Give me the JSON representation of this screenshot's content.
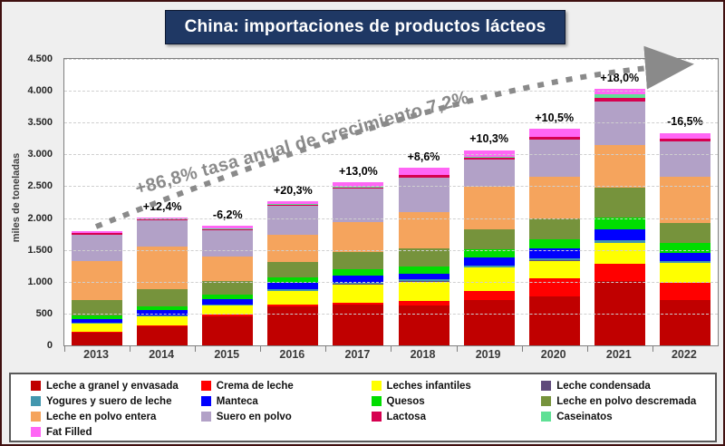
{
  "title": "China: importaciones de productos lácteos",
  "annotation_text": "+86,8% tasa anual de crecimiento 7,2%",
  "y_axis": {
    "label": "miles de toneladas",
    "tick_labels": [
      "0",
      "500",
      "1.000",
      "1.500",
      "2.000",
      "2.500",
      "3.000",
      "3.500",
      "4.000",
      "4.500"
    ]
  },
  "theme": {
    "title_bg": "#1F3864",
    "title_text": "#FFFFFF",
    "frame_border": "#401010",
    "background": "#EFEFEF",
    "arrow_color": "#8a8a8a"
  },
  "chart_data": {
    "type": "bar",
    "stacked": true,
    "title": "China: importaciones de productos lácteos",
    "xlabel": "",
    "ylabel": "miles de toneladas",
    "ylim": [
      0,
      4500
    ],
    "y_step": 500,
    "grid": true,
    "legend_position": "bottom",
    "categories": [
      "2013",
      "2014",
      "2015",
      "2016",
      "2017",
      "2018",
      "2019",
      "2020",
      "2021",
      "2022"
    ],
    "growth_labels": [
      "",
      "+12,4%",
      "-6,2%",
      "+20,3%",
      "+13,0%",
      "+8,6%",
      "+10,3%",
      "+10,5%",
      "+18,0%",
      "-16,5%"
    ],
    "annotation": "+86,8% tasa anual de crecimiento 7,2%",
    "series": [
      {
        "name": "Leche a granel y envasada",
        "color": "#C00000",
        "values": [
          195,
          300,
          460,
          615,
          640,
          630,
          715,
          765,
          1010,
          710
        ]
      },
      {
        "name": "Crema de leche",
        "color": "#FF0000",
        "values": [
          15,
          20,
          25,
          25,
          30,
          70,
          135,
          290,
          270,
          275
        ]
      },
      {
        "name": "Leches infantiles",
        "color": "#FFFF00",
        "values": [
          130,
          135,
          140,
          215,
          290,
          300,
          370,
          275,
          330,
          305
        ]
      },
      {
        "name": "Leche condensada",
        "color": "#604A7B",
        "values": [
          5,
          5,
          5,
          5,
          5,
          5,
          5,
          5,
          5,
          5
        ]
      },
      {
        "name": "Yogures y suero de leche",
        "color": "#4397AE",
        "values": [
          5,
          10,
          10,
          20,
          25,
          30,
          30,
          35,
          35,
          25
        ]
      },
      {
        "name": "Manteca",
        "color": "#0000FF",
        "values": [
          65,
          90,
          85,
          100,
          105,
          95,
          125,
          160,
          175,
          140
        ]
      },
      {
        "name": "Quesos",
        "color": "#00DD00",
        "values": [
          50,
          60,
          70,
          85,
          100,
          105,
          130,
          130,
          180,
          150
        ]
      },
      {
        "name": "Leche en polvo descremada",
        "color": "#76933C",
        "values": [
          250,
          260,
          215,
          245,
          270,
          295,
          320,
          330,
          475,
          320
        ]
      },
      {
        "name": "Leche en polvo entera",
        "color": "#F5A45D",
        "values": [
          605,
          680,
          385,
          435,
          475,
          560,
          665,
          665,
          665,
          720
        ]
      },
      {
        "name": "Suero en polvo",
        "color": "#B2A1C7",
        "values": [
          425,
          410,
          415,
          450,
          520,
          550,
          425,
          585,
          690,
          550
        ]
      },
      {
        "name": "Lactosa",
        "color": "#D60050",
        "values": [
          15,
          15,
          20,
          20,
          25,
          35,
          35,
          30,
          55,
          45
        ]
      },
      {
        "name": "Caseinatos",
        "color": "#5FE095",
        "values": [
          5,
          5,
          5,
          5,
          5,
          5,
          5,
          5,
          55,
          5
        ]
      },
      {
        "name": "Fat Filled",
        "color": "#FF66F5",
        "values": [
          25,
          25,
          45,
          50,
          75,
          115,
          110,
          130,
          80,
          90
        ]
      }
    ],
    "totals": [
      1790,
      2015,
      1880,
      2270,
      2565,
      2795,
      3070,
      3405,
      4025,
      3340
    ]
  }
}
